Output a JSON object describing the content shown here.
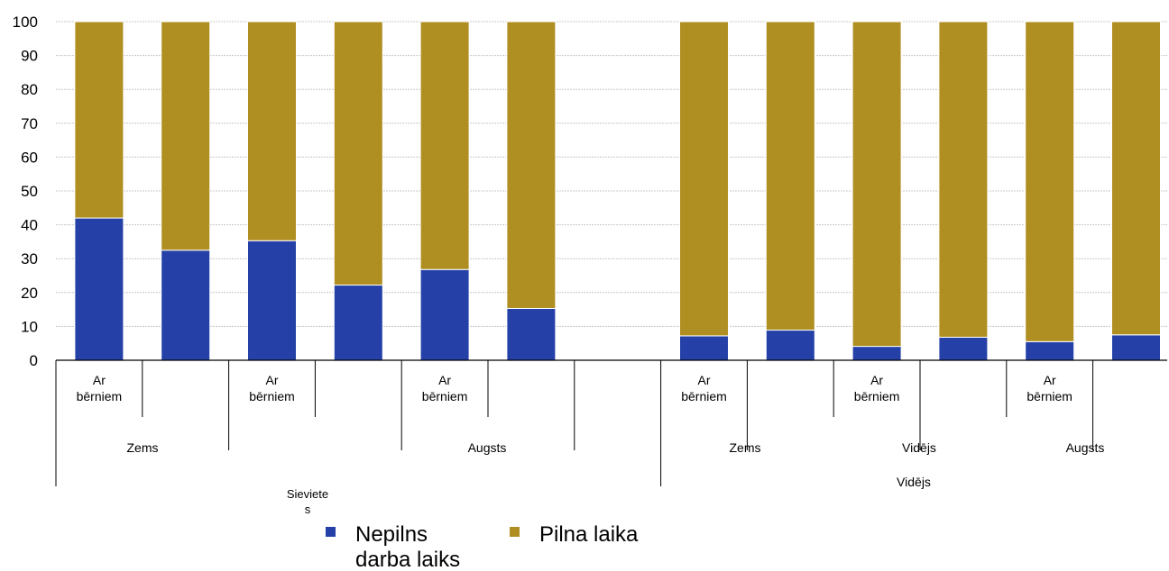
{
  "chart_data": {
    "type": "bar",
    "stacked": true,
    "ylim": [
      0,
      100
    ],
    "yticks": [
      0,
      10,
      20,
      30,
      40,
      50,
      60,
      70,
      80,
      90,
      100
    ],
    "grid": true,
    "bar_labels": [
      "Ar\nbērniem",
      "",
      "Ar\nbērniem",
      "",
      "Ar\nbērniem",
      "",
      "Ar\nbērniem",
      "",
      "Ar\nbērniem",
      "",
      "Ar\nbērniem",
      ""
    ],
    "series": [
      {
        "name": "Nepilns darba laiks",
        "color": "#2541a8",
        "values": [
          42,
          32.5,
          35.3,
          22.2,
          26.8,
          15.3,
          7.2,
          8.9,
          4.1,
          6.8,
          5.5,
          7.5
        ]
      },
      {
        "name": "Pilna laika",
        "color": "#b08f22",
        "values": [
          58,
          67.5,
          64.7,
          77.8,
          73.2,
          84.7,
          92.8,
          91.1,
          95.9,
          93.2,
          94.5,
          92.5
        ]
      }
    ],
    "level2_labels": [
      "Zems",
      "Augsts",
      "Zems",
      "Vidējs",
      "Augsts"
    ],
    "level3_labels": [
      "Sieviete\ns",
      "Vidējs"
    ],
    "legend": [
      "Nepilns\ndarba laiks",
      "Pilna laika"
    ]
  }
}
